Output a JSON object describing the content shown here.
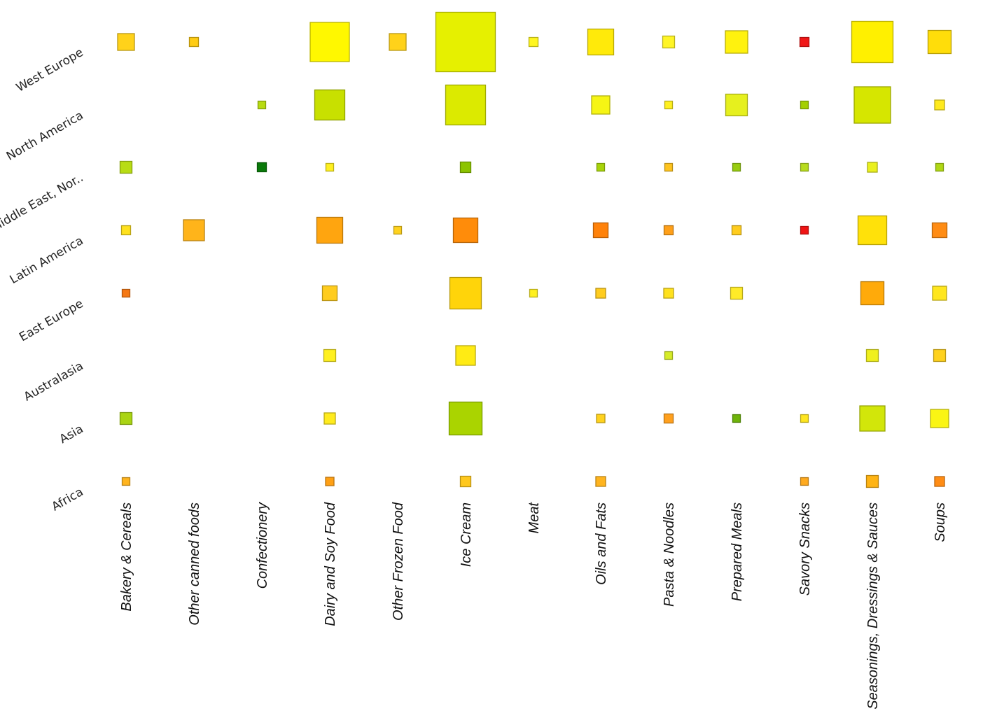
{
  "chart_data": {
    "type": "heatmap",
    "encoding": "square size and colour",
    "rows": [
      "West Europe",
      "North America",
      "Middle East, Nor..",
      "Latin America",
      "East Europe",
      "Australasia",
      "Asia",
      "Africa"
    ],
    "columns": [
      "Bakery & Cereals",
      "Other canned foods",
      "Confectionery",
      "Dairy and Soy Food",
      "Other Frozen Food",
      "Ice Cream",
      "Meat",
      "Oils and Fats",
      "Pasta & Noodles",
      "Prepared Meals",
      "Savory Snacks",
      "Seasonings, Dressings & Sauces",
      "Soups"
    ],
    "size_scale_max": 85,
    "cells": [
      {
        "row": "West Europe",
        "column": "Bakery & Cereals",
        "size": 24,
        "color": "#FFD21A"
      },
      {
        "row": "West Europe",
        "column": "Other canned foods",
        "size": 13,
        "color": "#FFCC14"
      },
      {
        "row": "West Europe",
        "column": "Dairy and Soy Food",
        "size": 56,
        "color": "#FFF800"
      },
      {
        "row": "West Europe",
        "column": "Other Frozen Food",
        "size": 24,
        "color": "#FFD21A"
      },
      {
        "row": "West Europe",
        "column": "Ice Cream",
        "size": 85,
        "color": "#E6F000"
      },
      {
        "row": "West Europe",
        "column": "Meat",
        "size": 13,
        "color": "#FFF620"
      },
      {
        "row": "West Europe",
        "column": "Oils and Fats",
        "size": 37,
        "color": "#FFEA0A"
      },
      {
        "row": "West Europe",
        "column": "Pasta & Noodles",
        "size": 17,
        "color": "#FFF526"
      },
      {
        "row": "West Europe",
        "column": "Prepared Meals",
        "size": 32,
        "color": "#FFF20E"
      },
      {
        "row": "West Europe",
        "column": "Savory Snacks",
        "size": 13,
        "color": "#F01818"
      },
      {
        "row": "West Europe",
        "column": "Seasonings, Dressings & Sauces",
        "size": 59,
        "color": "#FFF000"
      },
      {
        "row": "West Europe",
        "column": "Soups",
        "size": 33,
        "color": "#FFDD0A"
      },
      {
        "row": "North America",
        "column": "Confectionery",
        "size": 11,
        "color": "#B8DC12"
      },
      {
        "row": "North America",
        "column": "Dairy and Soy Food",
        "size": 43,
        "color": "#C8E000"
      },
      {
        "row": "North America",
        "column": "Ice Cream",
        "size": 57,
        "color": "#DCEA00"
      },
      {
        "row": "North America",
        "column": "Oils and Fats",
        "size": 26,
        "color": "#F6F514"
      },
      {
        "row": "North America",
        "column": "Pasta & Noodles",
        "size": 11,
        "color": "#FFF020"
      },
      {
        "row": "North America",
        "column": "Prepared Meals",
        "size": 31,
        "color": "#E6F01E"
      },
      {
        "row": "North America",
        "column": "Savory Snacks",
        "size": 11,
        "color": "#A4D000"
      },
      {
        "row": "North America",
        "column": "Seasonings, Dressings & Sauces",
        "size": 52,
        "color": "#D6E600"
      },
      {
        "row": "North America",
        "column": "Soups",
        "size": 14,
        "color": "#FFEA1E"
      },
      {
        "row": "Middle East, Nor..",
        "column": "Bakery & Cereals",
        "size": 17,
        "color": "#B8DC14"
      },
      {
        "row": "Middle East, Nor..",
        "column": "Confectionery",
        "size": 13,
        "color": "#0A7A0A"
      },
      {
        "row": "Middle East, Nor..",
        "column": "Dairy and Soy Food",
        "size": 11,
        "color": "#FFF020"
      },
      {
        "row": "Middle East, Nor..",
        "column": "Ice Cream",
        "size": 15,
        "color": "#8CC400"
      },
      {
        "row": "Middle East, Nor..",
        "column": "Oils and Fats",
        "size": 11,
        "color": "#A8D40A"
      },
      {
        "row": "Middle East, Nor..",
        "column": "Pasta & Noodles",
        "size": 11,
        "color": "#FFC41E"
      },
      {
        "row": "Middle East, Nor..",
        "column": "Prepared Meals",
        "size": 11,
        "color": "#98CC10"
      },
      {
        "row": "Middle East, Nor..",
        "column": "Savory Snacks",
        "size": 11,
        "color": "#B8DC1E"
      },
      {
        "row": "Middle East, Nor..",
        "column": "Seasonings, Dressings & Sauces",
        "size": 14,
        "color": "#EAF01E"
      },
      {
        "row": "Middle East, Nor..",
        "column": "Soups",
        "size": 11,
        "color": "#B0D814"
      },
      {
        "row": "Latin America",
        "column": "Bakery & Cereals",
        "size": 13,
        "color": "#FFE11E"
      },
      {
        "row": "Latin America",
        "column": "Other canned foods",
        "size": 30,
        "color": "#FFB41A"
      },
      {
        "row": "Latin America",
        "column": "Dairy and Soy Food",
        "size": 37,
        "color": "#FFA50F"
      },
      {
        "row": "Latin America",
        "column": "Other Frozen Food",
        "size": 11,
        "color": "#FFD21E"
      },
      {
        "row": "Latin America",
        "column": "Ice Cream",
        "size": 35,
        "color": "#FF8C0A"
      },
      {
        "row": "Latin America",
        "column": "Oils and Fats",
        "size": 21,
        "color": "#FF820A"
      },
      {
        "row": "Latin America",
        "column": "Pasta & Noodles",
        "size": 13,
        "color": "#FFA019"
      },
      {
        "row": "Latin America",
        "column": "Prepared Meals",
        "size": 13,
        "color": "#FFCC1E"
      },
      {
        "row": "Latin America",
        "column": "Savory Snacks",
        "size": 11,
        "color": "#F01414"
      },
      {
        "row": "Latin America",
        "column": "Seasonings, Dressings & Sauces",
        "size": 41,
        "color": "#FFE10A"
      },
      {
        "row": "Latin America",
        "column": "Soups",
        "size": 21,
        "color": "#FF8C14"
      },
      {
        "row": "East Europe",
        "column": "Bakery & Cereals",
        "size": 11,
        "color": "#F57814"
      },
      {
        "row": "East Europe",
        "column": "Dairy and Soy Food",
        "size": 21,
        "color": "#FFCC1E"
      },
      {
        "row": "East Europe",
        "column": "Ice Cream",
        "size": 45,
        "color": "#FFD40A"
      },
      {
        "row": "East Europe",
        "column": "Meat",
        "size": 11,
        "color": "#FFF020"
      },
      {
        "row": "East Europe",
        "column": "Oils and Fats",
        "size": 14,
        "color": "#FFCC1E"
      },
      {
        "row": "East Europe",
        "column": "Pasta & Noodles",
        "size": 14,
        "color": "#FFE11E"
      },
      {
        "row": "East Europe",
        "column": "Prepared Meals",
        "size": 17,
        "color": "#FFEB28"
      },
      {
        "row": "East Europe",
        "column": "Seasonings, Dressings & Sauces",
        "size": 33,
        "color": "#FFAA0A"
      },
      {
        "row": "East Europe",
        "column": "Soups",
        "size": 20,
        "color": "#FFE61E"
      },
      {
        "row": "Australasia",
        "column": "Dairy and Soy Food",
        "size": 17,
        "color": "#FFF020"
      },
      {
        "row": "Australasia",
        "column": "Ice Cream",
        "size": 28,
        "color": "#FFEB14"
      },
      {
        "row": "Australasia",
        "column": "Pasta & Noodles",
        "size": 11,
        "color": "#D6EC28"
      },
      {
        "row": "Australasia",
        "column": "Seasonings, Dressings & Sauces",
        "size": 17,
        "color": "#F0F01E"
      },
      {
        "row": "Australasia",
        "column": "Soups",
        "size": 17,
        "color": "#FFD21E"
      },
      {
        "row": "Asia",
        "column": "Bakery & Cereals",
        "size": 17,
        "color": "#AAD414"
      },
      {
        "row": "Asia",
        "column": "Dairy and Soy Food",
        "size": 16,
        "color": "#FFEB1E"
      },
      {
        "row": "Asia",
        "column": "Ice Cream",
        "size": 47,
        "color": "#AAD400"
      },
      {
        "row": "Asia",
        "column": "Oils and Fats",
        "size": 12,
        "color": "#FFD21E"
      },
      {
        "row": "Asia",
        "column": "Pasta & Noodles",
        "size": 13,
        "color": "#FFA01E"
      },
      {
        "row": "Asia",
        "column": "Prepared Meals",
        "size": 11,
        "color": "#6EB40A"
      },
      {
        "row": "Asia",
        "column": "Savory Snacks",
        "size": 11,
        "color": "#FFE620"
      },
      {
        "row": "Asia",
        "column": "Seasonings, Dressings & Sauces",
        "size": 36,
        "color": "#D2E60A"
      },
      {
        "row": "Asia",
        "column": "Soups",
        "size": 26,
        "color": "#FAF514"
      },
      {
        "row": "Africa",
        "column": "Bakery & Cereals",
        "size": 11,
        "color": "#FFB41E"
      },
      {
        "row": "Africa",
        "column": "Dairy and Soy Food",
        "size": 12,
        "color": "#FFA014"
      },
      {
        "row": "Africa",
        "column": "Ice Cream",
        "size": 15,
        "color": "#FFC81E"
      },
      {
        "row": "Africa",
        "column": "Oils and Fats",
        "size": 14,
        "color": "#FFB41E"
      },
      {
        "row": "Africa",
        "column": "Savory Snacks",
        "size": 11,
        "color": "#FFAA1E"
      },
      {
        "row": "Africa",
        "column": "Seasonings, Dressings & Sauces",
        "size": 17,
        "color": "#FFB414"
      },
      {
        "row": "Africa",
        "column": "Soups",
        "size": 14,
        "color": "#FF8C14"
      }
    ]
  }
}
